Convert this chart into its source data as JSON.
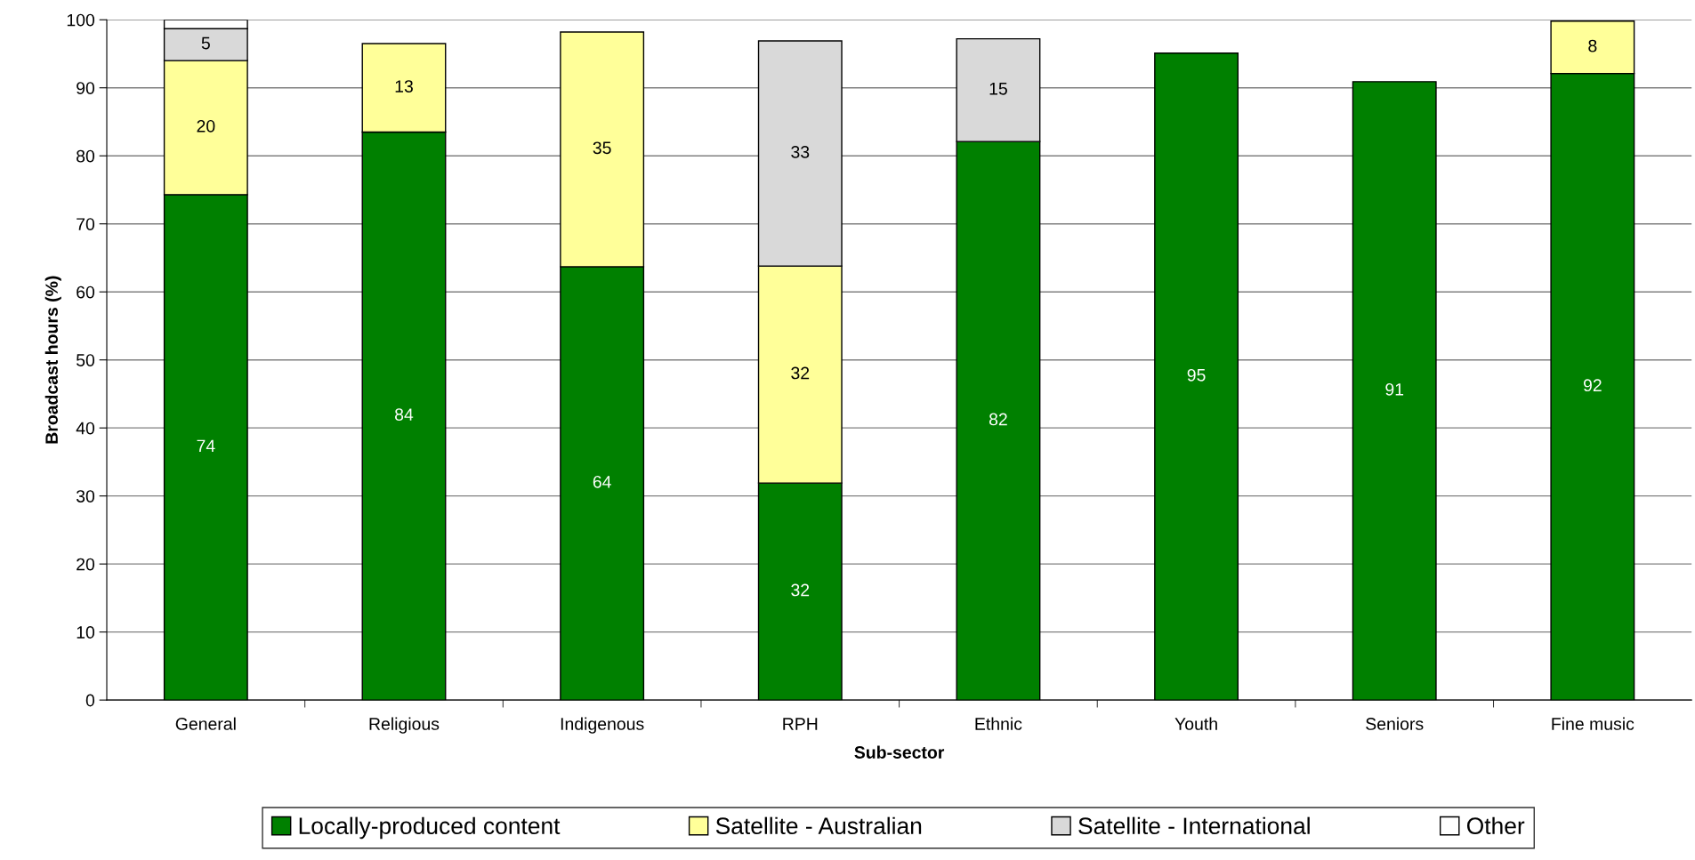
{
  "chart_data": {
    "type": "bar",
    "stacked": true,
    "xlabel": "Sub-sector",
    "ylabel": "Broadcast hours (%)",
    "categories": [
      "General",
      "Religious",
      "Indigenous",
      "RPH",
      "Ethnic",
      "Youth",
      "Seniors",
      "Fine music"
    ],
    "series": [
      {
        "name": "Locally-produced content",
        "color": "#008000",
        "values": [
          74.3,
          83.5,
          63.7,
          31.9,
          82.1,
          95.1,
          90.9,
          92.1
        ],
        "value_labels": [
          "74",
          "84",
          "64",
          "32",
          "82",
          "95",
          "91",
          "92"
        ]
      },
      {
        "name": "Satellite - Australian",
        "color": "#ffff99",
        "values": [
          19.7,
          13.0,
          34.5,
          31.9,
          null,
          null,
          null,
          7.7
        ],
        "value_labels": [
          "20",
          "13",
          "35",
          "32",
          null,
          null,
          null,
          "8"
        ]
      },
      {
        "name": "Satellite - International",
        "color": "#d9d9d9",
        "values": [
          4.7,
          null,
          null,
          33.1,
          15.1,
          null,
          null,
          null
        ],
        "value_labels": [
          "5",
          null,
          null,
          "33",
          "15",
          null,
          null,
          null
        ]
      },
      {
        "name": "Other",
        "color": "#ffffff",
        "values": [
          1.3,
          null,
          null,
          null,
          null,
          null,
          null,
          null
        ],
        "value_labels": [
          null,
          null,
          null,
          null,
          null,
          null,
          null,
          null
        ]
      }
    ],
    "ylim": [
      0,
      100
    ],
    "yticks": [
      0,
      10,
      20,
      30,
      40,
      50,
      60,
      70,
      80,
      90,
      100
    ],
    "grid": "y",
    "legend": "bottom"
  }
}
